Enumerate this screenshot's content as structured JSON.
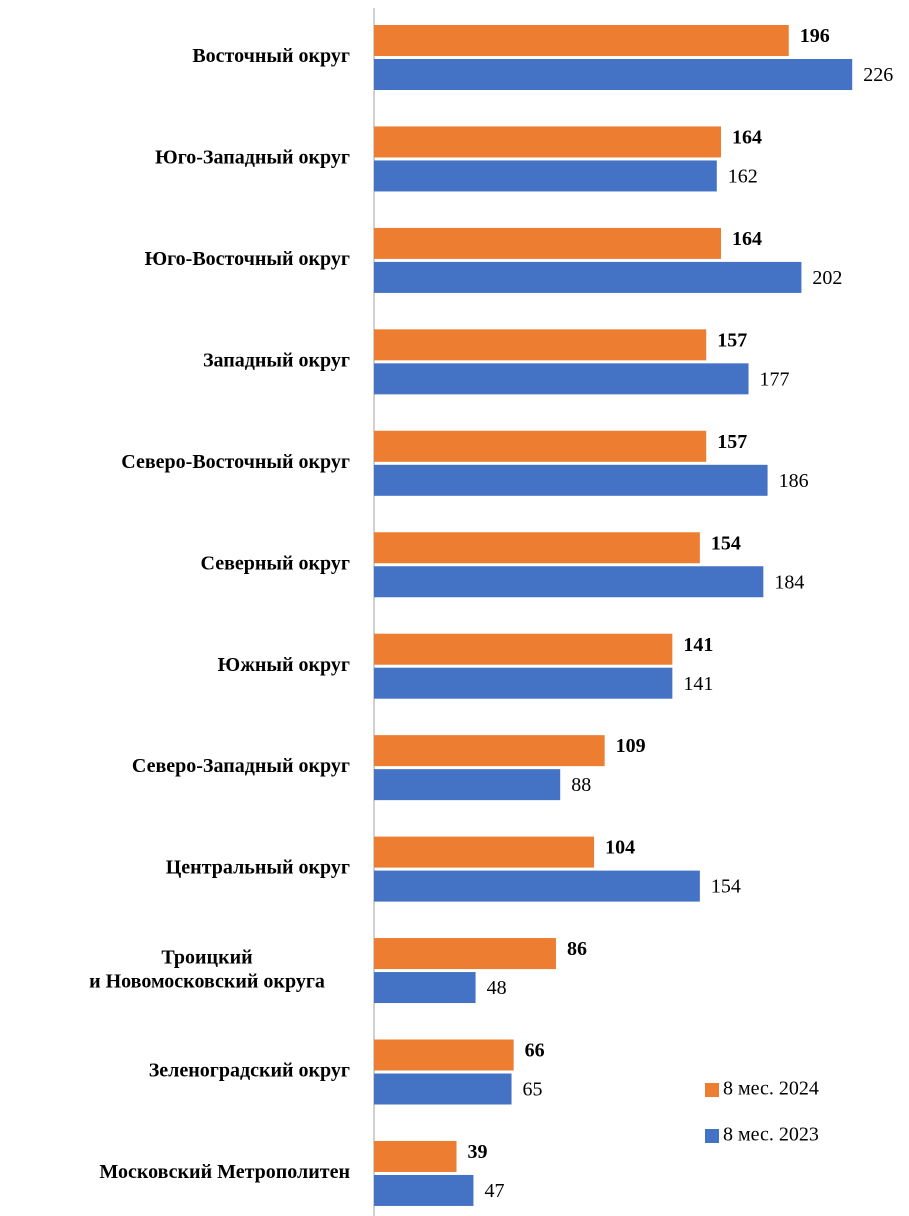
{
  "chart_data": {
    "type": "barh",
    "categories": [
      "Восточный округ",
      "Юго-Западный округ",
      "Юго-Восточный округ",
      "Западный округ",
      "Северо-Восточный округ",
      "Северный округ",
      "Южный округ",
      "Северо-Западный округ",
      "Центральный округ",
      "Троицкий\nи Новомосковский округа",
      "Зеленоградский округ",
      "Московский Метрополитен"
    ],
    "series": [
      {
        "name": "8 мес. 2024",
        "color": "#ed7d31",
        "values": [
          196,
          164,
          164,
          157,
          157,
          154,
          141,
          109,
          104,
          86,
          66,
          39
        ]
      },
      {
        "name": "8 мес. 2023",
        "color": "#4472c4",
        "values": [
          226,
          162,
          202,
          177,
          186,
          184,
          141,
          88,
          154,
          48,
          65,
          47
        ]
      }
    ],
    "xlim": [
      0,
      250
    ],
    "legend": "lower right"
  }
}
